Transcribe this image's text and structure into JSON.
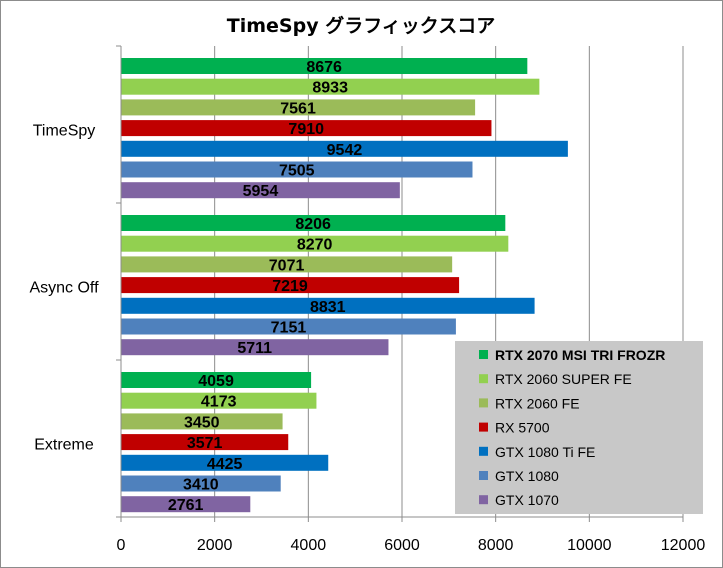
{
  "chart_data": {
    "type": "bar",
    "orientation": "horizontal",
    "title": "TimeSpy グラフィックスコア",
    "categories": [
      "TimeSpy",
      "Async Off",
      "Extreme"
    ],
    "xlim": [
      0,
      12000
    ],
    "xticks": [
      "0",
      "2000",
      "4000",
      "6000",
      "8000",
      "10000",
      "12000"
    ],
    "grid": true,
    "legend_position": "bottom-right",
    "series": [
      {
        "name": "RTX 2070 MSI TRI FROZR",
        "color": "#00b050",
        "values": [
          8676,
          8206,
          4059
        ],
        "bold": true
      },
      {
        "name": "RTX 2060 SUPER FE",
        "color": "#92d050",
        "values": [
          8933,
          8270,
          4173
        ]
      },
      {
        "name": "RTX 2060 FE",
        "color": "#9bbb59",
        "values": [
          7561,
          7071,
          3450
        ]
      },
      {
        "name": "RX 5700",
        "color": "#c00000",
        "values": [
          7910,
          7219,
          3571
        ]
      },
      {
        "name": "GTX 1080 Ti FE",
        "color": "#0070c0",
        "values": [
          9542,
          8831,
          4425
        ]
      },
      {
        "name": "GTX 1080",
        "color": "#4f81bd",
        "values": [
          7505,
          7151,
          3410
        ]
      },
      {
        "name": "GTX 1070",
        "color": "#8064a2",
        "values": [
          5954,
          5711,
          2761
        ]
      }
    ]
  }
}
